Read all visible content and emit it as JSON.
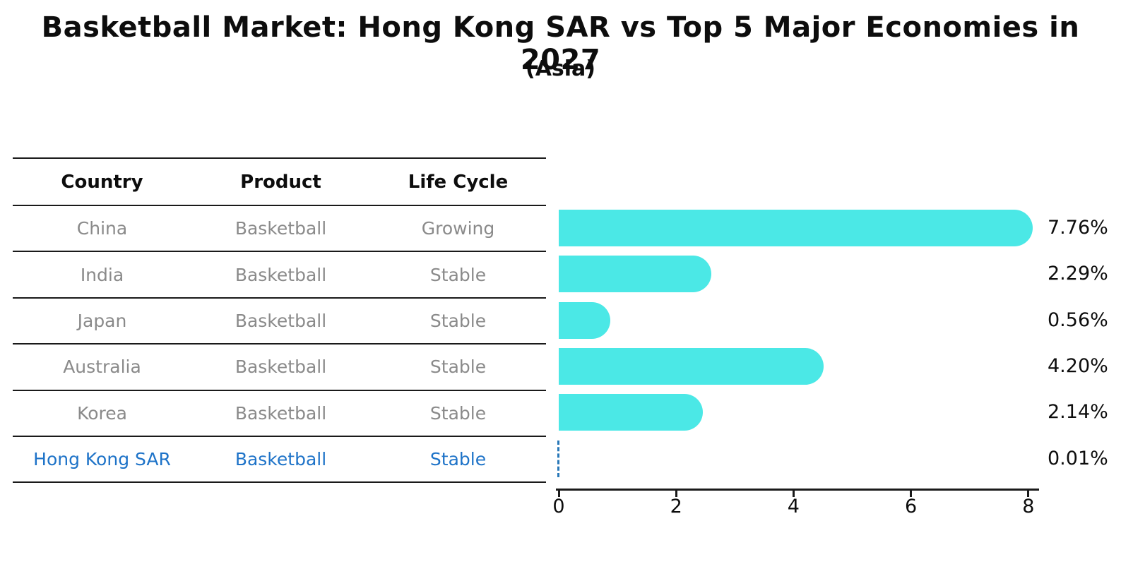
{
  "title": "Basketball Market: Hong Kong SAR vs Top 5 Major Economies in 2027",
  "subtitle": "(Asia)",
  "table": {
    "headers": [
      "Country",
      "Product",
      "Life Cycle"
    ],
    "rows": [
      {
        "country": "China",
        "product": "Basketball",
        "life_cycle": "Growing",
        "highlight": false
      },
      {
        "country": "India",
        "product": "Basketball",
        "life_cycle": "Stable",
        "highlight": false
      },
      {
        "country": "Japan",
        "product": "Basketball",
        "life_cycle": "Stable",
        "highlight": false
      },
      {
        "country": "Australia",
        "product": "Basketball",
        "life_cycle": "Stable",
        "highlight": false
      },
      {
        "country": "Korea",
        "product": "Basketball",
        "life_cycle": "Stable",
        "highlight": false
      },
      {
        "country": "Hong Kong SAR",
        "product": "Basketball",
        "life_cycle": "Stable",
        "highlight": true
      }
    ]
  },
  "chart_data": {
    "type": "bar",
    "orientation": "horizontal",
    "title": "Basketball Market: Hong Kong SAR vs Top 5 Major Economies in 2027",
    "subtitle": "(Asia)",
    "categories": [
      "China",
      "India",
      "Japan",
      "Australia",
      "Korea",
      "Hong Kong SAR"
    ],
    "values": [
      7.76,
      2.29,
      0.56,
      4.2,
      2.14,
      0.01
    ],
    "value_labels": [
      "7.76%",
      "2.29%",
      "0.56%",
      "4.20%",
      "2.14%",
      "0.01%"
    ],
    "xlabel": "",
    "ylabel": "",
    "xlim": [
      0,
      8
    ],
    "x_ticks": [
      0,
      2,
      4,
      6,
      8
    ],
    "grid": false,
    "legend": false,
    "bar_color": "#4be8e6",
    "highlight_index": 5,
    "highlight_style": "dashed-outline",
    "highlight_color": "#2878b8",
    "highlight_text_color": "#1e73c8"
  }
}
